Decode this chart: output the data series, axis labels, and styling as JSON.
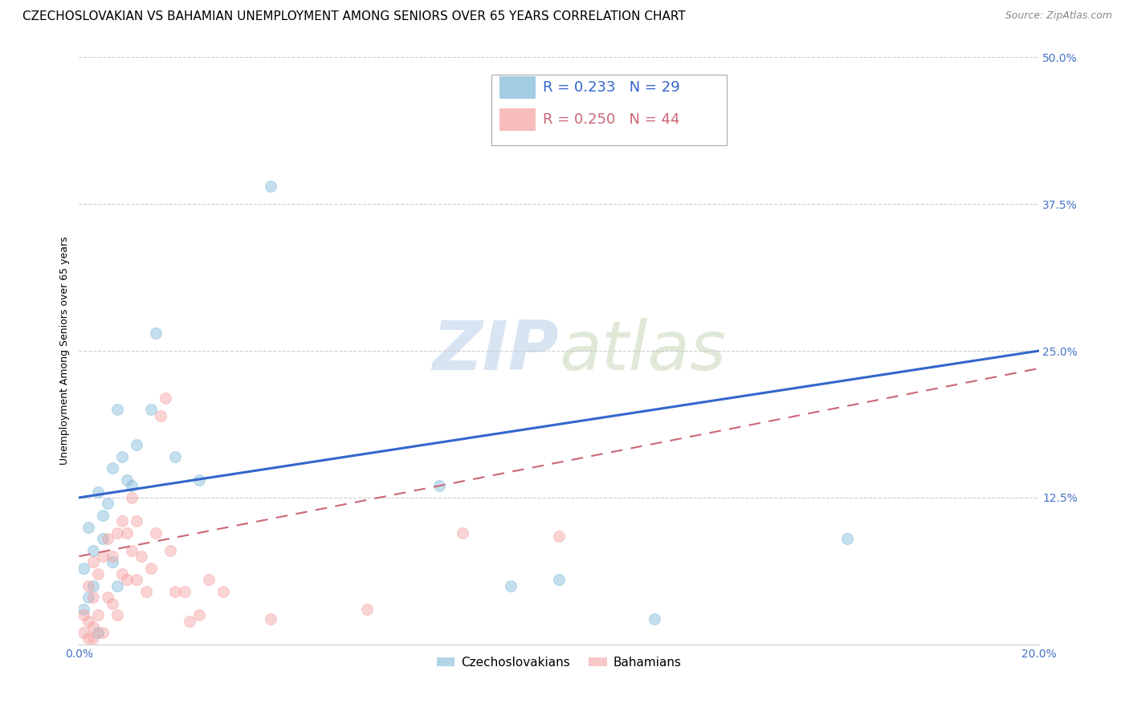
{
  "title": "CZECHOSLOVAKIAN VS BAHAMIAN UNEMPLOYMENT AMONG SENIORS OVER 65 YEARS CORRELATION CHART",
  "source": "Source: ZipAtlas.com",
  "ylabel": "Unemployment Among Seniors over 65 years",
  "xlim": [
    0.0,
    0.2
  ],
  "ylim": [
    0.0,
    0.5
  ],
  "xticks": [
    0.0,
    0.05,
    0.1,
    0.15,
    0.2
  ],
  "xticklabels": [
    "0.0%",
    "",
    "",
    "",
    "20.0%"
  ],
  "yticks": [
    0.0,
    0.125,
    0.25,
    0.375,
    0.5
  ],
  "yticklabels": [
    "",
    "12.5%",
    "25.0%",
    "37.5%",
    "50.0%"
  ],
  "watermark_zip": "ZIP",
  "watermark_atlas": "atlas",
  "legend_r_czech": "R = 0.233",
  "legend_n_czech": "N = 29",
  "legend_r_baha": "R = 0.250",
  "legend_n_baha": "N = 44",
  "czech_color": "#7db8d8",
  "baha_color": "#f4a0a0",
  "czech_line_color": "#3366cc",
  "baha_line_color": "#cc6677",
  "grid_color": "#cccccc",
  "tick_color": "#4472c4",
  "czech_scatter_x": [
    0.001,
    0.001,
    0.002,
    0.002,
    0.003,
    0.003,
    0.004,
    0.004,
    0.005,
    0.005,
    0.006,
    0.007,
    0.007,
    0.008,
    0.008,
    0.009,
    0.01,
    0.011,
    0.012,
    0.015,
    0.016,
    0.02,
    0.025,
    0.04,
    0.075,
    0.09,
    0.1,
    0.12,
    0.16
  ],
  "czech_scatter_y": [
    0.03,
    0.065,
    0.04,
    0.1,
    0.05,
    0.08,
    0.01,
    0.13,
    0.09,
    0.11,
    0.12,
    0.07,
    0.15,
    0.05,
    0.2,
    0.16,
    0.14,
    0.135,
    0.17,
    0.2,
    0.265,
    0.16,
    0.14,
    0.39,
    0.135,
    0.05,
    0.055,
    0.022,
    0.09
  ],
  "baha_scatter_x": [
    0.001,
    0.001,
    0.002,
    0.002,
    0.002,
    0.003,
    0.003,
    0.003,
    0.003,
    0.004,
    0.004,
    0.005,
    0.005,
    0.006,
    0.006,
    0.007,
    0.007,
    0.008,
    0.008,
    0.009,
    0.009,
    0.01,
    0.01,
    0.011,
    0.011,
    0.012,
    0.012,
    0.013,
    0.014,
    0.015,
    0.016,
    0.017,
    0.018,
    0.019,
    0.02,
    0.022,
    0.023,
    0.025,
    0.027,
    0.03,
    0.04,
    0.06,
    0.08,
    0.1
  ],
  "baha_scatter_y": [
    0.01,
    0.025,
    0.005,
    0.02,
    0.05,
    0.005,
    0.015,
    0.04,
    0.07,
    0.025,
    0.06,
    0.01,
    0.075,
    0.04,
    0.09,
    0.035,
    0.075,
    0.025,
    0.095,
    0.06,
    0.105,
    0.055,
    0.095,
    0.08,
    0.125,
    0.055,
    0.105,
    0.075,
    0.045,
    0.065,
    0.095,
    0.195,
    0.21,
    0.08,
    0.045,
    0.045,
    0.02,
    0.025,
    0.055,
    0.045,
    0.022,
    0.03,
    0.095,
    0.092
  ],
  "czech_line_x": [
    0.0,
    0.2
  ],
  "czech_line_y": [
    0.125,
    0.25
  ],
  "baha_line_x": [
    0.0,
    0.2
  ],
  "baha_line_y": [
    0.075,
    0.235
  ],
  "marker_size": 100,
  "marker_alpha": 0.45,
  "title_fontsize": 11,
  "source_fontsize": 9,
  "axis_label_fontsize": 9,
  "tick_fontsize": 10,
  "legend_fontsize": 13
}
